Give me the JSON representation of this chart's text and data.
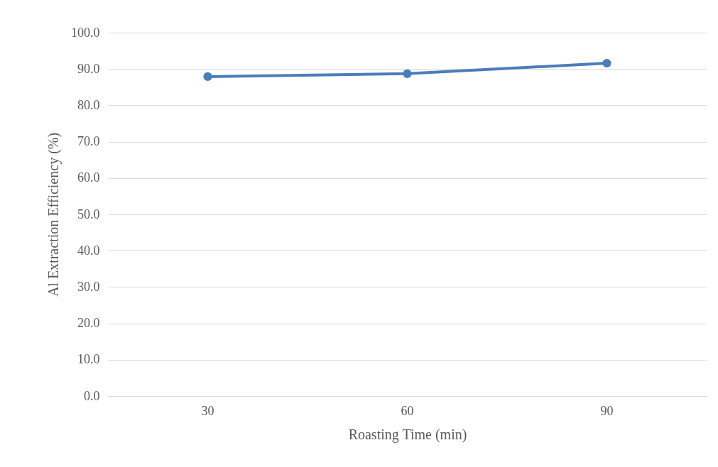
{
  "chart_data": {
    "type": "line",
    "xlabel": "Roasting Time (min)",
    "ylabel": "Al Extraction Efficiency (%)",
    "categories": [
      "30",
      "60",
      "90"
    ],
    "series": [
      {
        "color": "#4a7ebb",
        "values": [
          87.9,
          88.7,
          91.6
        ]
      }
    ],
    "ylim": [
      0,
      100
    ],
    "yticks": [
      {
        "value": 0,
        "label": "0.0"
      },
      {
        "value": 10,
        "label": "10.0"
      },
      {
        "value": 20,
        "label": "20.0"
      },
      {
        "value": 30,
        "label": "30.0"
      },
      {
        "value": 40,
        "label": "40.0"
      },
      {
        "value": 50,
        "label": "50.0"
      },
      {
        "value": 60,
        "label": "60.0"
      },
      {
        "value": 70,
        "label": "70.0"
      },
      {
        "value": 80,
        "label": "80.0"
      },
      {
        "value": 90,
        "label": "90.0"
      },
      {
        "value": 100,
        "label": "100.0"
      }
    ],
    "grid": "y",
    "marker": "circle",
    "line_style": "solid",
    "legend": false
  }
}
